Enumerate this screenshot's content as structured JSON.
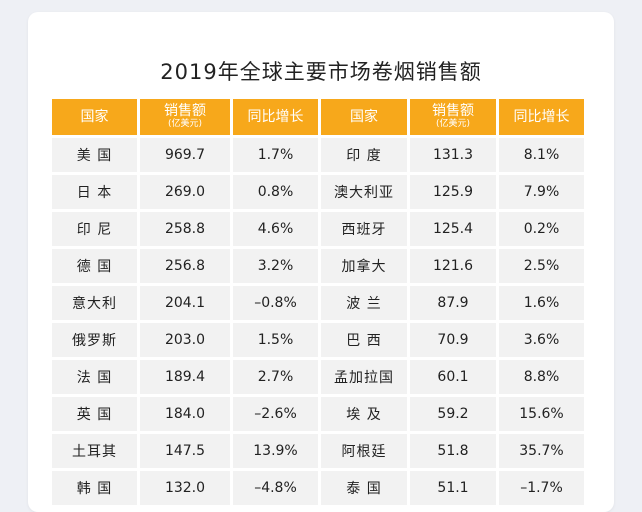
{
  "title": "2019年全球主要市场卷烟销售额",
  "table": {
    "headers": [
      "国家",
      "销售额",
      "同比增长",
      "国家",
      "销售额",
      "同比增长"
    ],
    "sales_unit": "(亿美元)",
    "rows": [
      [
        "美 国",
        "969.7",
        "1.7%",
        "印 度",
        "131.3",
        "8.1%"
      ],
      [
        "日 本",
        "269.0",
        "0.8%",
        "澳大利亚",
        "125.9",
        "7.9%"
      ],
      [
        "印 尼",
        "258.8",
        "4.6%",
        "西班牙",
        "125.4",
        "0.2%"
      ],
      [
        "德 国",
        "256.8",
        "3.2%",
        "加拿大",
        "121.6",
        "2.5%"
      ],
      [
        "意大利",
        "204.1",
        "–0.8%",
        "波 兰",
        "87.9",
        "1.6%"
      ],
      [
        "俄罗斯",
        "203.0",
        "1.5%",
        "巴 西",
        "70.9",
        "3.6%"
      ],
      [
        "法 国",
        "189.4",
        "2.7%",
        "孟加拉国",
        "60.1",
        "8.8%"
      ],
      [
        "英 国",
        "184.0",
        "–2.6%",
        "埃 及",
        "59.2",
        "15.6%"
      ],
      [
        "土耳其",
        "147.5",
        "13.9%",
        "阿根廷",
        "51.8",
        "35.7%"
      ],
      [
        "韩 国",
        "132.0",
        "–4.8%",
        "泰 国",
        "51.1",
        "–1.7%"
      ]
    ]
  }
}
